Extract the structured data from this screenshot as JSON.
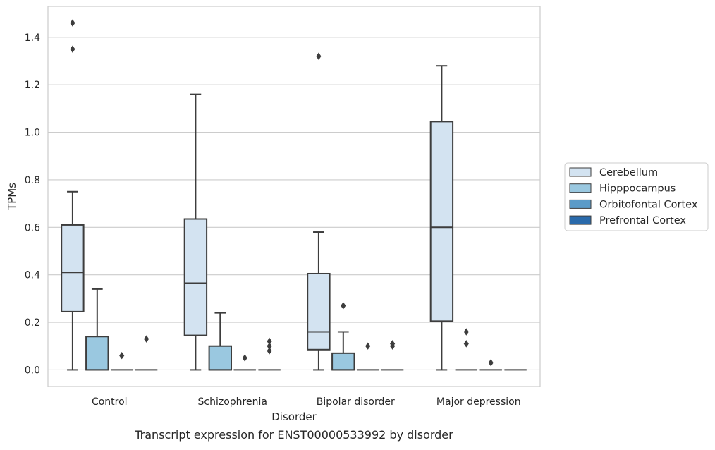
{
  "caption": "Transcript expression for ENST00000533992 by disorder",
  "chart_data": {
    "type": "box",
    "xlabel": "Disorder",
    "ylabel": "TPMs",
    "ylim": [
      -0.07,
      1.53
    ],
    "yticks": [
      0.0,
      0.2,
      0.4,
      0.6,
      0.8,
      1.0,
      1.2,
      1.4
    ],
    "ytick_labels": [
      "0.0",
      "0.2",
      "0.4",
      "0.6",
      "0.8",
      "1.0",
      "1.2",
      "1.4"
    ],
    "grid": "horizontal",
    "legend_position": "right",
    "categories": [
      "Control",
      "Schizophrenia",
      "Bipolar disorder",
      "Major depression"
    ],
    "series": [
      {
        "name": "Cerebellum",
        "color": "#d3e3f1",
        "boxes": [
          {
            "q1": 0.245,
            "median": 0.41,
            "q3": 0.61,
            "whisker_low": 0.0,
            "whisker_high": 0.75,
            "outliers": [
              1.35,
              1.46
            ]
          },
          {
            "q1": 0.145,
            "median": 0.365,
            "q3": 0.635,
            "whisker_low": 0.0,
            "whisker_high": 1.16,
            "outliers": []
          },
          {
            "q1": 0.085,
            "median": 0.16,
            "q3": 0.405,
            "whisker_low": 0.0,
            "whisker_high": 0.58,
            "outliers": [
              1.32
            ]
          },
          {
            "q1": 0.205,
            "median": 0.6,
            "q3": 1.045,
            "whisker_low": 0.0,
            "whisker_high": 1.28,
            "outliers": []
          }
        ]
      },
      {
        "name": "Hipppocampus",
        "color": "#9ac8e0",
        "boxes": [
          {
            "q1": 0.0,
            "median": 0.0,
            "q3": 0.14,
            "whisker_low": 0.0,
            "whisker_high": 0.34,
            "outliers": []
          },
          {
            "q1": 0.0,
            "median": 0.0,
            "q3": 0.1,
            "whisker_low": 0.0,
            "whisker_high": 0.24,
            "outliers": []
          },
          {
            "q1": 0.0,
            "median": 0.0,
            "q3": 0.07,
            "whisker_low": 0.0,
            "whisker_high": 0.16,
            "outliers": [
              0.27
            ]
          },
          {
            "q1": 0.0,
            "median": 0.0,
            "q3": 0.0,
            "whisker_low": 0.0,
            "whisker_high": 0.0,
            "outliers": [
              0.11,
              0.16
            ]
          }
        ]
      },
      {
        "name": "Orbitofontal Cortex",
        "color": "#5b9bc8",
        "boxes": [
          {
            "q1": 0.0,
            "median": 0.0,
            "q3": 0.0,
            "whisker_low": 0.0,
            "whisker_high": 0.0,
            "outliers": [
              0.06
            ]
          },
          {
            "q1": 0.0,
            "median": 0.0,
            "q3": 0.0,
            "whisker_low": 0.0,
            "whisker_high": 0.0,
            "outliers": [
              0.05
            ]
          },
          {
            "q1": 0.0,
            "median": 0.0,
            "q3": 0.0,
            "whisker_low": 0.0,
            "whisker_high": 0.0,
            "outliers": [
              0.1
            ]
          },
          {
            "q1": 0.0,
            "median": 0.0,
            "q3": 0.0,
            "whisker_low": 0.0,
            "whisker_high": 0.0,
            "outliers": [
              0.03
            ]
          }
        ]
      },
      {
        "name": "Prefrontal Cortex",
        "color": "#2a6aab",
        "boxes": [
          {
            "q1": 0.0,
            "median": 0.0,
            "q3": 0.0,
            "whisker_low": 0.0,
            "whisker_high": 0.0,
            "outliers": [
              0.13
            ]
          },
          {
            "q1": 0.0,
            "median": 0.0,
            "q3": 0.0,
            "whisker_low": 0.0,
            "whisker_high": 0.0,
            "outliers": [
              0.08,
              0.1,
              0.12
            ]
          },
          {
            "q1": 0.0,
            "median": 0.0,
            "q3": 0.0,
            "whisker_low": 0.0,
            "whisker_high": 0.0,
            "outliers": [
              0.1,
              0.11
            ]
          },
          {
            "q1": 0.0,
            "median": 0.0,
            "q3": 0.0,
            "whisker_low": 0.0,
            "whisker_high": 0.0,
            "outliers": []
          }
        ]
      }
    ]
  }
}
